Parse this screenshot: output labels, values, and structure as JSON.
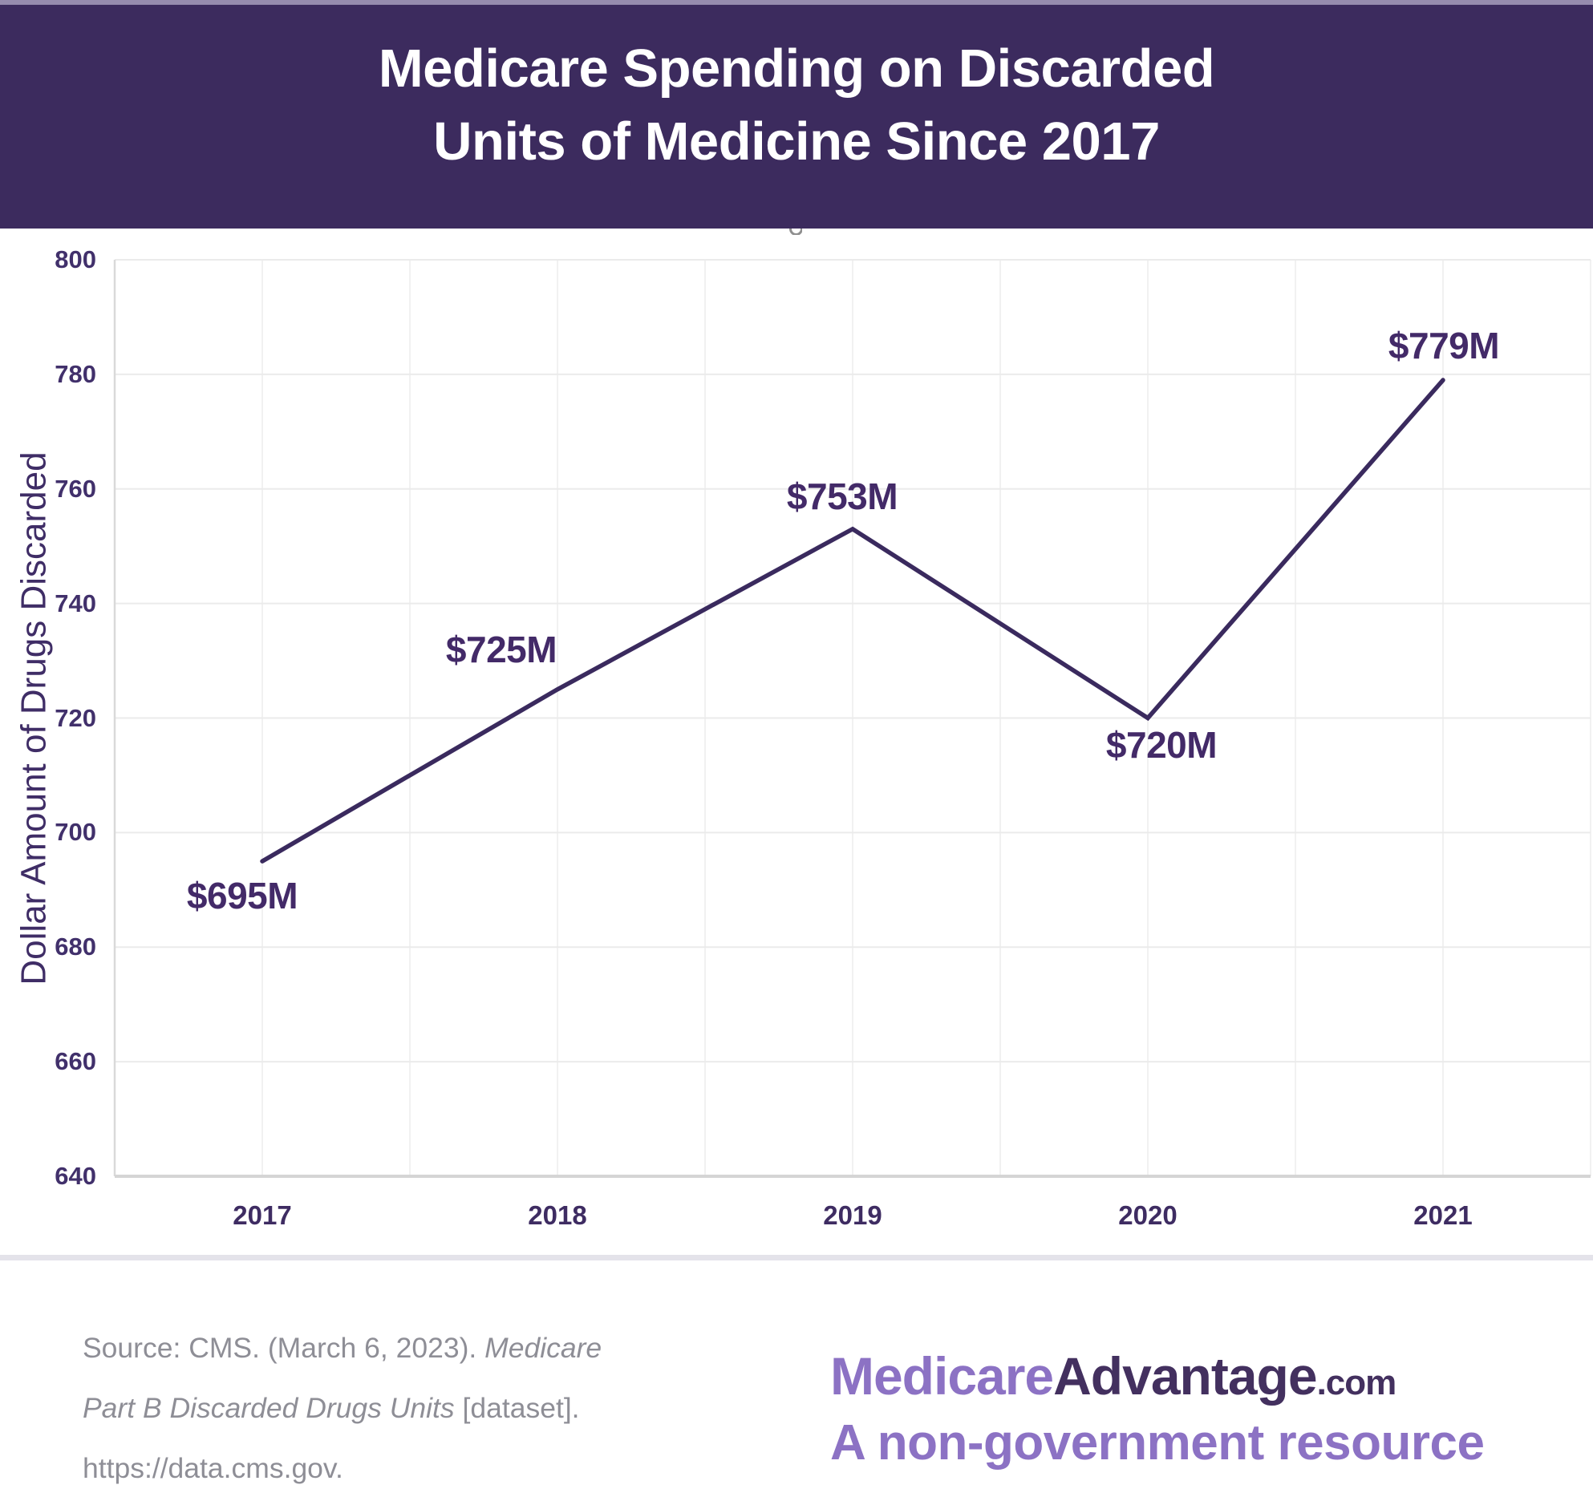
{
  "header": {
    "title_line1": "Medicare Spending on Discarded",
    "title_line2": "Units of Medicine Since 2017"
  },
  "chart_data": {
    "type": "line",
    "title": "Medicare Spending on Discarded Units of Medicine Since 2017",
    "x": [
      "2017",
      "2018",
      "2019",
      "2020",
      "2021"
    ],
    "values": [
      695,
      725,
      753,
      720,
      779
    ],
    "data_labels": [
      "$695M",
      "$725M",
      "$753M",
      "$720M",
      "$779M"
    ],
    "xlabel": "",
    "ylabel": "Dollar Amount of Drugs Discarded",
    "ylim": [
      640,
      800
    ],
    "yticks": [
      640,
      660,
      680,
      700,
      720,
      740,
      760,
      780,
      800
    ],
    "grid": true,
    "legend": "none",
    "line_color": "#3a2a5e",
    "label_color": "#432a68",
    "gridline_color": "#ebebeb",
    "axis_color": "#d5d5d5"
  },
  "footer": {
    "source": {
      "line1_regular": "Source: CMS. (March 6, 2023). ",
      "line1_italic": "Medicare",
      "line2_italic": "Part B Discarded Drugs Units",
      "line2_regular": " [dataset].",
      "line3": "https://data.cms.gov."
    },
    "logo": {
      "part1": "Medicare",
      "part2": "Advantage",
      "part3": ".com",
      "tagline": "A non-government resource",
      "light_color": "#8c72c4",
      "dark_color": "#43305f"
    }
  }
}
